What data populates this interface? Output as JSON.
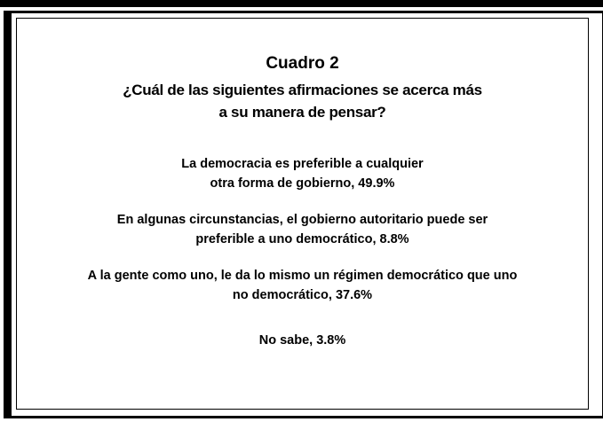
{
  "title": "Cuadro 2",
  "question": [
    "¿Cuál de las siguientes afirmaciones se acerca más",
    "a su manera de pensar?"
  ],
  "items": [
    {
      "lines": [
        "La democracia es preferible a cualquier",
        "otra forma de gobierno,  49.9%"
      ]
    },
    {
      "lines": [
        "En algunas circunstancias, el gobierno autoritario puede ser",
        "preferible a uno democrático, 8.8%"
      ]
    },
    {
      "lines": [
        "A la gente como uno, le da lo mismo un régimen democrático que uno",
        "no democrático, 37.6%"
      ]
    },
    {
      "lines": [
        "No sabe, 3.8%"
      ]
    }
  ]
}
